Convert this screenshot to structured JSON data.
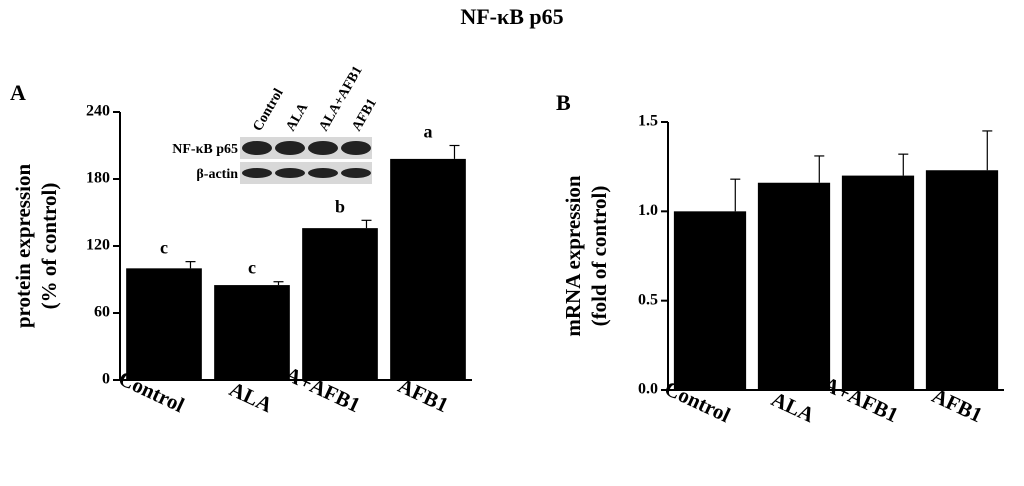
{
  "figure_title": "NF-κB p65",
  "chart_data": [
    {
      "type": "bar",
      "panel": "A",
      "ylabel": [
        "protein expression",
        "(% of control)"
      ],
      "categories": [
        "Control",
        "ALA",
        "ALA+AFB1",
        "AFB1"
      ],
      "values": [
        100,
        85,
        136,
        198
      ],
      "errors": [
        6,
        3,
        7,
        12
      ],
      "annotations": [
        "c",
        "c",
        "b",
        "a"
      ],
      "color": "#000000",
      "ylim": [
        0,
        240
      ],
      "yticks": [
        0,
        60,
        120,
        180,
        240
      ],
      "inset": {
        "lanes": [
          "Control",
          "ALA",
          "ALA+AFB1",
          "AFB1"
        ],
        "rows": [
          "NF-κB p65",
          "β-actin"
        ]
      }
    },
    {
      "type": "bar",
      "panel": "B",
      "ylabel": [
        "mRNA expression",
        "(fold of control)"
      ],
      "categories": [
        "Control",
        "ALA",
        "ALA+AFB1",
        "AFB1"
      ],
      "values": [
        1.0,
        1.16,
        1.2,
        1.23
      ],
      "errors": [
        0.18,
        0.15,
        0.12,
        0.22
      ],
      "color": "#000000",
      "ylim": [
        0,
        1.5
      ],
      "yticks": [
        {
          "value": 0,
          "label": "0.0"
        },
        0.5,
        {
          "value": 1,
          "label": "1.0"
        },
        1.5
      ]
    }
  ]
}
